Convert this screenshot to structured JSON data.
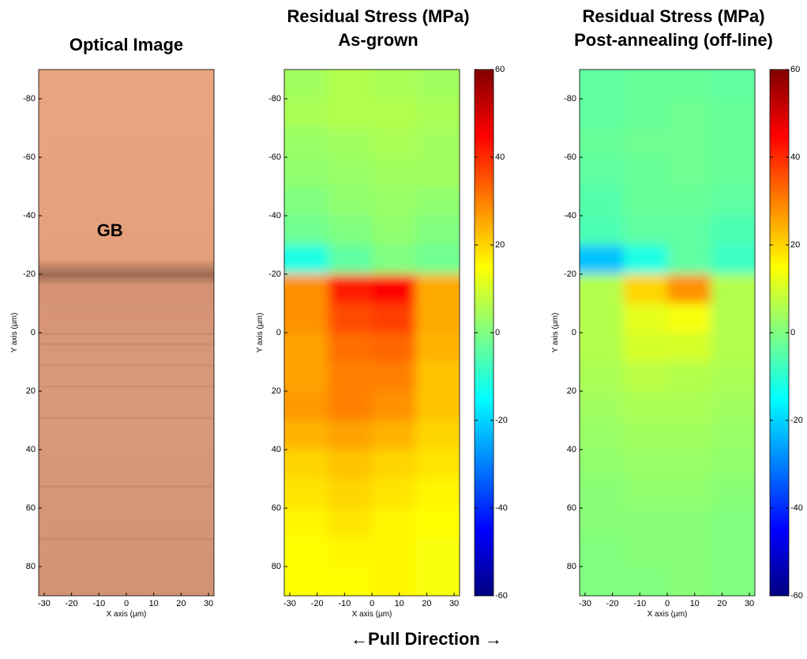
{
  "chart_data": [
    {
      "type": "image",
      "title": "Optical Image",
      "annotation": "GB",
      "x_label": "X axis (µm)",
      "y_label": "Y axis (µm)",
      "xlim": [
        -32,
        32
      ],
      "ylim": [
        -90,
        90
      ],
      "y_reversed": true,
      "xticks": [
        -30,
        -20,
        -10,
        0,
        10,
        20,
        30
      ],
      "yticks": [
        -80,
        -60,
        -40,
        -20,
        0,
        20,
        40,
        60,
        80
      ]
    },
    {
      "type": "heatmap",
      "title": "Residual Stress (MPa)",
      "subtitle": "As-grown",
      "x_label": "X axis (µm)",
      "y_label": "Y axis (µm)",
      "xlim": [
        -32,
        32
      ],
      "ylim": [
        -90,
        90
      ],
      "y_reversed": true,
      "xticks": [
        -30,
        -20,
        -10,
        0,
        10,
        20,
        30
      ],
      "yticks": [
        -80,
        -60,
        -40,
        -20,
        0,
        20,
        40,
        60,
        80
      ],
      "colormap": "jet",
      "zlim": [
        -60,
        60
      ],
      "zticks": [
        -60,
        -40,
        -20,
        0,
        20,
        40,
        60
      ],
      "x": [
        -24,
        -8,
        8,
        24
      ],
      "y": [
        -85,
        -75,
        -65,
        -55,
        -45,
        -35,
        -25,
        -15,
        -5,
        5,
        15,
        25,
        35,
        45,
        55,
        65,
        75,
        85
      ],
      "values": [
        [
          4,
          6,
          5,
          4
        ],
        [
          5,
          6,
          6,
          5
        ],
        [
          3,
          4,
          5,
          4
        ],
        [
          2,
          3,
          4,
          4
        ],
        [
          0,
          2,
          3,
          2
        ],
        [
          -2,
          0,
          2,
          0
        ],
        [
          -12,
          -4,
          0,
          -2
        ],
        [
          28,
          42,
          45,
          25
        ],
        [
          28,
          36,
          38,
          25
        ],
        [
          26,
          32,
          33,
          24
        ],
        [
          26,
          30,
          30,
          22
        ],
        [
          27,
          30,
          28,
          22
        ],
        [
          24,
          26,
          24,
          20
        ],
        [
          20,
          22,
          20,
          18
        ],
        [
          18,
          20,
          18,
          16
        ],
        [
          16,
          18,
          16,
          15
        ],
        [
          15,
          16,
          16,
          14
        ],
        [
          15,
          15,
          16,
          14
        ]
      ]
    },
    {
      "type": "heatmap",
      "title": "Residual Stress (MPa)",
      "subtitle": "Post-annealing (off-line)",
      "x_label": "X axis (µm)",
      "y_label": "Y axis (µm)",
      "xlim": [
        -32,
        32
      ],
      "ylim": [
        -90,
        90
      ],
      "y_reversed": true,
      "xticks": [
        -30,
        -20,
        -10,
        0,
        10,
        20,
        30
      ],
      "yticks": [
        -80,
        -60,
        -40,
        -20,
        0,
        20,
        40,
        60,
        80
      ],
      "colormap": "jet",
      "zlim": [
        -60,
        60
      ],
      "zticks": [
        -60,
        -40,
        -20,
        0,
        20,
        40,
        60
      ],
      "x": [
        -24,
        -8,
        8,
        24
      ],
      "y": [
        -85,
        -75,
        -65,
        -55,
        -45,
        -35,
        -25,
        -15,
        -5,
        5,
        15,
        25,
        35,
        45,
        55,
        65,
        75,
        85
      ],
      "values": [
        [
          -4,
          -3,
          -3,
          -4
        ],
        [
          -4,
          -3,
          -2,
          -3
        ],
        [
          -3,
          -2,
          -2,
          -3
        ],
        [
          -4,
          -3,
          -2,
          -3
        ],
        [
          -5,
          -3,
          -3,
          -4
        ],
        [
          -6,
          -4,
          -4,
          -6
        ],
        [
          -22,
          -12,
          -4,
          -8
        ],
        [
          6,
          20,
          28,
          6
        ],
        [
          6,
          12,
          14,
          6
        ],
        [
          6,
          10,
          10,
          6
        ],
        [
          5,
          7,
          6,
          5
        ],
        [
          4,
          5,
          5,
          4
        ],
        [
          3,
          4,
          4,
          3
        ],
        [
          2,
          3,
          3,
          2
        ],
        [
          1,
          2,
          2,
          1
        ],
        [
          1,
          1,
          1,
          0
        ],
        [
          0,
          1,
          1,
          0
        ],
        [
          0,
          0,
          1,
          0
        ]
      ]
    }
  ],
  "caption": "←Pull Direction →"
}
